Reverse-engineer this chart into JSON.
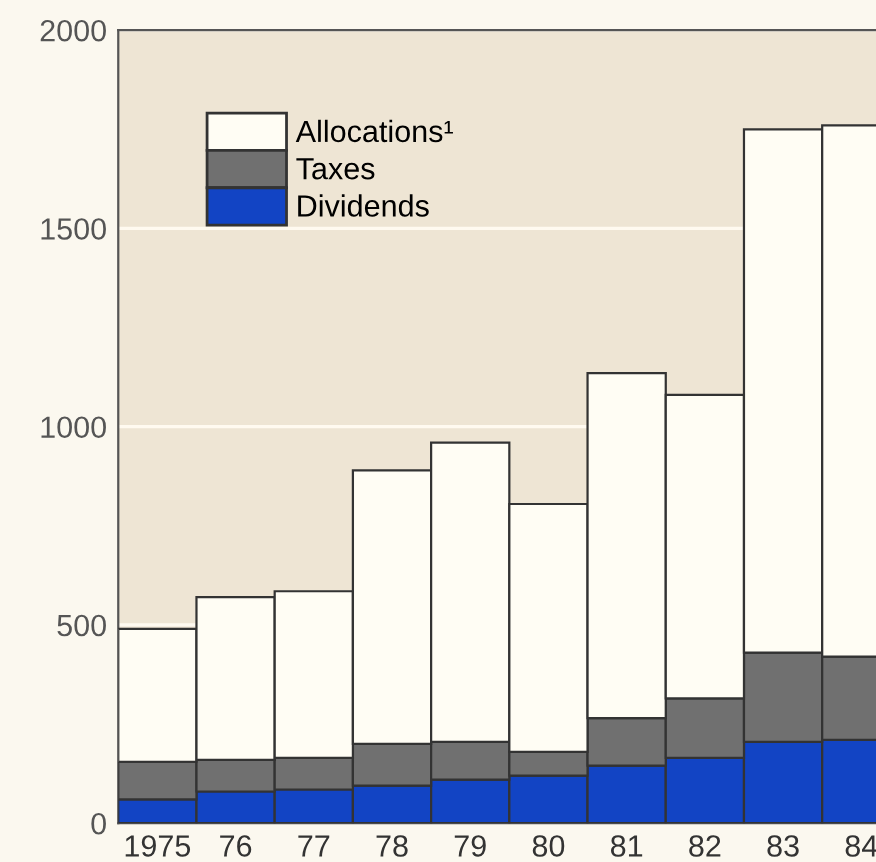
{
  "chart_data": {
    "type": "bar",
    "stacked": true,
    "categories": [
      "1975",
      "76",
      "77",
      "78",
      "79",
      "80",
      "81",
      "82",
      "83",
      "84"
    ],
    "series": [
      {
        "name": "Dividends",
        "color": "#1244c4",
        "values": [
          60,
          80,
          85,
          95,
          110,
          120,
          145,
          165,
          205,
          210
        ]
      },
      {
        "name": "Taxes",
        "color": "#707070",
        "values": [
          95,
          80,
          80,
          105,
          95,
          60,
          120,
          150,
          225,
          210
        ]
      },
      {
        "name": "Allocations¹",
        "color": "#fffdf4",
        "values": [
          335,
          410,
          420,
          690,
          755,
          625,
          870,
          765,
          1320,
          1340
        ]
      }
    ],
    "ylim": [
      0,
      2000
    ],
    "yticks": [
      0,
      500,
      1000,
      1500,
      2000
    ],
    "grid": "y",
    "legend": "top left"
  }
}
